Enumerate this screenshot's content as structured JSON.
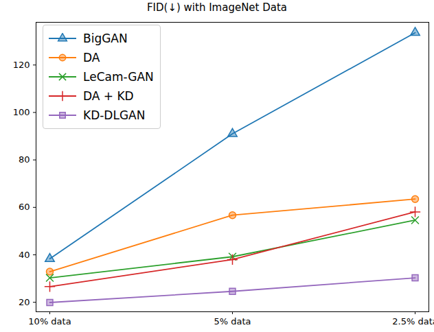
{
  "chart_data": {
    "type": "line",
    "title": "FID(↓) with ImageNet Data",
    "categories": [
      "10% data",
      "5% data",
      "2.5% data"
    ],
    "series": [
      {
        "name": "BigGAN",
        "color": "#1f77b4",
        "marker": "triangle",
        "values": [
          38.3,
          91.0,
          133.6
        ]
      },
      {
        "name": "DA",
        "color": "#ff7f0e",
        "marker": "circle",
        "values": [
          32.9,
          56.7,
          63.5
        ]
      },
      {
        "name": "LeCam-GAN",
        "color": "#2ca02c",
        "marker": "x",
        "values": [
          30.3,
          39.2,
          54.6
        ]
      },
      {
        "name": "DA + KD",
        "color": "#d62728",
        "marker": "plus",
        "values": [
          26.6,
          38.0,
          58.1
        ]
      },
      {
        "name": "KD-DLGAN",
        "color": "#9467bd",
        "marker": "square",
        "values": [
          19.9,
          24.6,
          30.3
        ]
      }
    ],
    "ylim": [
      16,
      138
    ],
    "yticks": [
      20,
      40,
      60,
      80,
      100,
      120
    ],
    "grid": false,
    "legend": "upper left"
  }
}
